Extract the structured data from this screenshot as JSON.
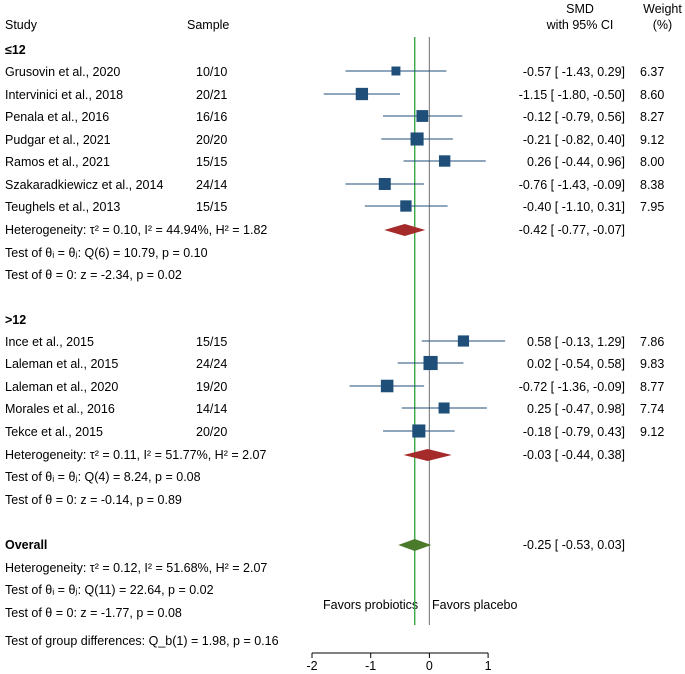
{
  "header": {
    "study": "Study",
    "sample": "Sample",
    "smd_line1": "SMD",
    "smd_line2": "with 95% CI",
    "weight_line1": "Weight",
    "weight_line2": "(%)"
  },
  "groups": [
    {
      "label": "≤12",
      "studies": [
        {
          "name": "Grusovin et al., 2020",
          "sample": "10/10",
          "ci_text": "-0.57 [ -1.43,  0.29]",
          "weight": "6.37"
        },
        {
          "name": "Intervinici et al., 2018",
          "sample": "20/21",
          "ci_text": "-1.15 [ -1.80, -0.50]",
          "weight": "8.60"
        },
        {
          "name": "Penala et al., 2016",
          "sample": "16/16",
          "ci_text": "-0.12 [ -0.79,  0.56]",
          "weight": "8.27"
        },
        {
          "name": "Pudgar et al., 2021",
          "sample": "20/20",
          "ci_text": "-0.21 [ -0.82,  0.40]",
          "weight": "9.12"
        },
        {
          "name": "Ramos et al., 2021",
          "sample": "15/15",
          "ci_text": "0.26 [ -0.44,  0.96]",
          "weight": "8.00"
        },
        {
          "name": "Szakaradkiewicz et al., 2014",
          "sample": "24/14",
          "ci_text": "-0.76 [ -1.43, -0.09]",
          "weight": "8.38"
        },
        {
          "name": "Teughels et al., 2013",
          "sample": "15/15",
          "ci_text": "-0.40 [ -1.10,  0.31]",
          "weight": "7.95"
        }
      ],
      "heterogeneity": "Heterogeneity: τ² = 0.10, I² = 44.94%, H² = 1.82",
      "summary_ci_text": "-0.42 [ -0.77, -0.07]",
      "test_q": "Test of θᵢ = θⱼ: Q(6) = 10.79, p = 0.10",
      "test_z": "Test of θ = 0: z = -2.34, p = 0.02"
    },
    {
      "label": ">12",
      "studies": [
        {
          "name": "Ince et al., 2015",
          "sample": "15/15",
          "ci_text": "0.58 [ -0.13,  1.29]",
          "weight": "7.86"
        },
        {
          "name": "Laleman et al., 2015",
          "sample": "24/24",
          "ci_text": "0.02 [ -0.54,  0.58]",
          "weight": "9.83"
        },
        {
          "name": "Laleman et al., 2020",
          "sample": "19/20",
          "ci_text": "-0.72 [ -1.36, -0.09]",
          "weight": "8.77"
        },
        {
          "name": "Morales et al., 2016",
          "sample": "14/14",
          "ci_text": "0.25 [ -0.47,  0.98]",
          "weight": "7.74"
        },
        {
          "name": "Tekce et al., 2015",
          "sample": "20/20",
          "ci_text": "-0.18 [ -0.79,  0.43]",
          "weight": "9.12"
        }
      ],
      "heterogeneity": "Heterogeneity: τ² = 0.11, I² = 51.77%, H² = 2.07",
      "summary_ci_text": "-0.03 [ -0.44,  0.38]",
      "test_q": "Test of θᵢ = θⱼ: Q(4) = 8.24, p = 0.08",
      "test_z": "Test of θ = 0: z = -0.14, p = 0.89"
    }
  ],
  "overall": {
    "label": "Overall",
    "ci_text": "-0.25 [ -0.53,  0.03]",
    "heterogeneity": "Heterogeneity: τ² = 0.12, I² = 51.68%, H² = 2.07",
    "test_q": "Test of θᵢ = θⱼ: Q(11) = 22.64, p = 0.02",
    "test_z": "Test of θ = 0: z = -1.77, p = 0.08",
    "test_group": "Test of group differences: Q_b(1) = 1.98, p = 0.16"
  },
  "favors": {
    "left": "Favors probiotics",
    "right": "Favors placebo"
  },
  "chart_data": {
    "type": "forest",
    "xlim": [
      -2,
      1
    ],
    "xticks": [
      "-2",
      "-1",
      "0",
      "1"
    ],
    "null_line": 0,
    "overall_line": -0.25,
    "colors": {
      "marker": "#1f4e79",
      "diamond_group": "#a52a2a",
      "diamond_overall": "#4a7a2a",
      "overall_line": "#3aa845",
      "null_line": "#888888",
      "ci_line": "#1f4e79"
    },
    "studies": [
      {
        "name": "Grusovin et al., 2020",
        "smd": -0.57,
        "lo": -1.43,
        "hi": 0.29,
        "weight": 6.37
      },
      {
        "name": "Intervinici et al., 2018",
        "smd": -1.15,
        "lo": -1.8,
        "hi": -0.5,
        "weight": 8.6
      },
      {
        "name": "Penala et al., 2016",
        "smd": -0.12,
        "lo": -0.79,
        "hi": 0.56,
        "weight": 8.27
      },
      {
        "name": "Pudgar et al., 2021",
        "smd": -0.21,
        "lo": -0.82,
        "hi": 0.4,
        "weight": 9.12
      },
      {
        "name": "Ramos et al., 2021",
        "smd": 0.26,
        "lo": -0.44,
        "hi": 0.96,
        "weight": 8.0
      },
      {
        "name": "Szakaradkiewicz et al., 2014",
        "smd": -0.76,
        "lo": -1.43,
        "hi": -0.09,
        "weight": 8.38
      },
      {
        "name": "Teughels et al., 2013",
        "smd": -0.4,
        "lo": -1.1,
        "hi": 0.31,
        "weight": 7.95
      },
      {
        "name": "Ince et al., 2015",
        "smd": 0.58,
        "lo": -0.13,
        "hi": 1.29,
        "weight": 7.86
      },
      {
        "name": "Laleman et al., 2015",
        "smd": 0.02,
        "lo": -0.54,
        "hi": 0.58,
        "weight": 9.83
      },
      {
        "name": "Laleman et al., 2020",
        "smd": -0.72,
        "lo": -1.36,
        "hi": -0.09,
        "weight": 8.77
      },
      {
        "name": "Morales et al., 2016",
        "smd": 0.25,
        "lo": -0.47,
        "hi": 0.98,
        "weight": 7.74
      },
      {
        "name": "Tekce et al., 2015",
        "smd": -0.18,
        "lo": -0.79,
        "hi": 0.43,
        "weight": 9.12
      }
    ],
    "summaries": [
      {
        "name": "≤12",
        "smd": -0.42,
        "lo": -0.77,
        "hi": -0.07
      },
      {
        "name": ">12",
        "smd": -0.03,
        "lo": -0.44,
        "hi": 0.38
      },
      {
        "name": "Overall",
        "smd": -0.25,
        "lo": -0.53,
        "hi": 0.03
      }
    ]
  }
}
